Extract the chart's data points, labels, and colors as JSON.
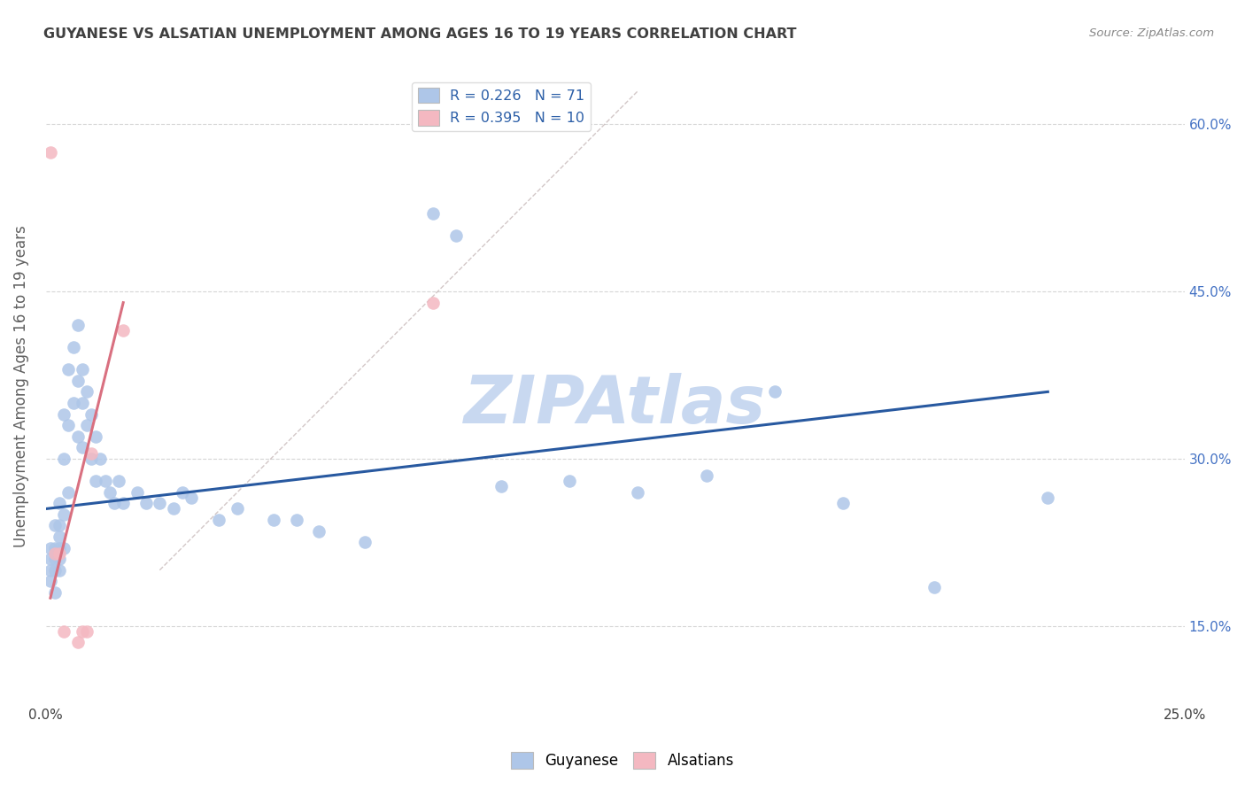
{
  "title": "GUYANESE VS ALSATIAN UNEMPLOYMENT AMONG AGES 16 TO 19 YEARS CORRELATION CHART",
  "source": "Source: ZipAtlas.com",
  "ylabel": "Unemployment Among Ages 16 to 19 years",
  "xlim": [
    0.0,
    0.25
  ],
  "ylim": [
    0.08,
    0.65
  ],
  "guyanese_color": "#aec6e8",
  "alsatian_color": "#f4b8c1",
  "line_blue": "#2859a0",
  "line_pink": "#d97080",
  "watermark_color": "#c8d8f0",
  "background_color": "#ffffff",
  "grid_color": "#cccccc",
  "title_color": "#404040",
  "guyanese_x": [
    0.001,
    0.001,
    0.001,
    0.001,
    0.002,
    0.002,
    0.002,
    0.002,
    0.002,
    0.003,
    0.003,
    0.003,
    0.003,
    0.003,
    0.003,
    0.004,
    0.004,
    0.004,
    0.004,
    0.005,
    0.005,
    0.005,
    0.006,
    0.006,
    0.007,
    0.007,
    0.007,
    0.008,
    0.008,
    0.008,
    0.009,
    0.009,
    0.01,
    0.01,
    0.011,
    0.011,
    0.012,
    0.013,
    0.014,
    0.015,
    0.016,
    0.017,
    0.02,
    0.022,
    0.025,
    0.028,
    0.03,
    0.032,
    0.038,
    0.042,
    0.05,
    0.055,
    0.06,
    0.07,
    0.085,
    0.09,
    0.1,
    0.115,
    0.13,
    0.145,
    0.16,
    0.175,
    0.195,
    0.22
  ],
  "guyanese_y": [
    0.22,
    0.21,
    0.2,
    0.19,
    0.24,
    0.22,
    0.21,
    0.2,
    0.18,
    0.26,
    0.24,
    0.23,
    0.22,
    0.21,
    0.2,
    0.34,
    0.3,
    0.25,
    0.22,
    0.38,
    0.33,
    0.27,
    0.4,
    0.35,
    0.42,
    0.37,
    0.32,
    0.38,
    0.35,
    0.31,
    0.36,
    0.33,
    0.34,
    0.3,
    0.32,
    0.28,
    0.3,
    0.28,
    0.27,
    0.26,
    0.28,
    0.26,
    0.27,
    0.26,
    0.26,
    0.255,
    0.27,
    0.265,
    0.245,
    0.255,
    0.245,
    0.245,
    0.235,
    0.225,
    0.52,
    0.5,
    0.275,
    0.28,
    0.27,
    0.285,
    0.36,
    0.26,
    0.185,
    0.265
  ],
  "alsatian_x": [
    0.001,
    0.002,
    0.003,
    0.004,
    0.007,
    0.008,
    0.009,
    0.01,
    0.017,
    0.085
  ],
  "alsatian_y": [
    0.575,
    0.215,
    0.215,
    0.145,
    0.135,
    0.145,
    0.145,
    0.305,
    0.415,
    0.44
  ],
  "blue_line_x0": 0.0,
  "blue_line_y0": 0.255,
  "blue_line_x1": 0.22,
  "blue_line_y1": 0.36,
  "pink_line_x0": 0.001,
  "pink_line_y0": 0.175,
  "pink_line_x1": 0.017,
  "pink_line_y1": 0.44,
  "dash_line_x0": 0.025,
  "dash_line_y0": 0.2,
  "dash_line_x1": 0.13,
  "dash_line_y1": 0.63
}
